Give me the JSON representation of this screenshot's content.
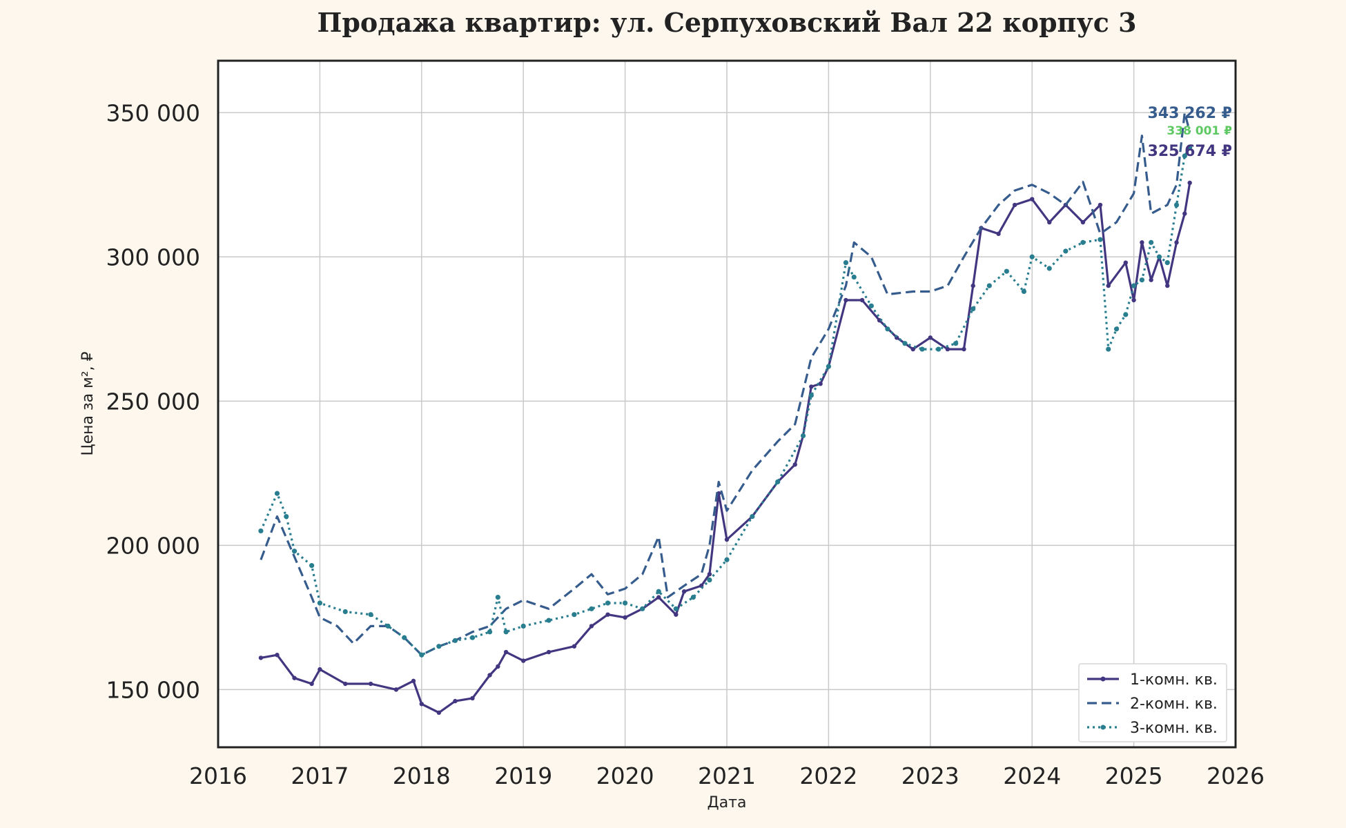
{
  "chart_data": {
    "type": "line",
    "title": "Продажа квартир: ул. Серпуховский Вал 22 корпус 3",
    "xlabel": "Дата",
    "ylabel": "Цена за м², ₽",
    "xlim": [
      2016.0,
      2026.0
    ],
    "ylim": [
      130000,
      368000
    ],
    "x_ticks": [
      "2016",
      "2017",
      "2018",
      "2019",
      "2020",
      "2021",
      "2022",
      "2023",
      "2024",
      "2025",
      "2026"
    ],
    "y_ticks": [
      {
        "value": 150000,
        "label": "150 000"
      },
      {
        "value": 200000,
        "label": "200 000"
      },
      {
        "value": 250000,
        "label": "250 000"
      },
      {
        "value": 300000,
        "label": "300 000"
      },
      {
        "value": 350000,
        "label": "350 000"
      }
    ],
    "grid": true,
    "legend_position": "bottom-right",
    "series": [
      {
        "name": "1-комн. кв.",
        "color": "#433680",
        "style": "solid",
        "end_label": "325 674 ₽",
        "points": [
          [
            2016.42,
            161000
          ],
          [
            2016.58,
            162000
          ],
          [
            2016.75,
            154000
          ],
          [
            2016.92,
            152000
          ],
          [
            2017.0,
            157000
          ],
          [
            2017.25,
            152000
          ],
          [
            2017.5,
            152000
          ],
          [
            2017.75,
            150000
          ],
          [
            2017.92,
            153000
          ],
          [
            2018.0,
            145000
          ],
          [
            2018.17,
            142000
          ],
          [
            2018.33,
            146000
          ],
          [
            2018.5,
            147000
          ],
          [
            2018.67,
            155000
          ],
          [
            2018.75,
            158000
          ],
          [
            2018.83,
            163000
          ],
          [
            2019.0,
            160000
          ],
          [
            2019.25,
            163000
          ],
          [
            2019.5,
            165000
          ],
          [
            2019.67,
            172000
          ],
          [
            2019.83,
            176000
          ],
          [
            2020.0,
            175000
          ],
          [
            2020.17,
            178000
          ],
          [
            2020.33,
            182000
          ],
          [
            2020.5,
            176000
          ],
          [
            2020.58,
            184000
          ],
          [
            2020.75,
            186000
          ],
          [
            2020.83,
            190000
          ],
          [
            2020.92,
            218000
          ],
          [
            2021.0,
            202000
          ],
          [
            2021.25,
            210000
          ],
          [
            2021.5,
            222000
          ],
          [
            2021.67,
            228000
          ],
          [
            2021.75,
            238000
          ],
          [
            2021.83,
            255000
          ],
          [
            2021.92,
            256000
          ],
          [
            2022.0,
            262000
          ],
          [
            2022.17,
            285000
          ],
          [
            2022.33,
            285000
          ],
          [
            2022.5,
            278000
          ],
          [
            2022.67,
            272000
          ],
          [
            2022.83,
            268000
          ],
          [
            2023.0,
            272000
          ],
          [
            2023.17,
            268000
          ],
          [
            2023.33,
            268000
          ],
          [
            2023.42,
            290000
          ],
          [
            2023.5,
            310000
          ],
          [
            2023.67,
            308000
          ],
          [
            2023.83,
            318000
          ],
          [
            2024.0,
            320000
          ],
          [
            2024.17,
            312000
          ],
          [
            2024.33,
            318000
          ],
          [
            2024.5,
            312000
          ],
          [
            2024.67,
            318000
          ],
          [
            2024.75,
            290000
          ],
          [
            2024.92,
            298000
          ],
          [
            2025.0,
            285000
          ],
          [
            2025.08,
            305000
          ],
          [
            2025.17,
            292000
          ],
          [
            2025.25,
            300000
          ],
          [
            2025.33,
            290000
          ],
          [
            2025.42,
            305000
          ],
          [
            2025.5,
            315000
          ],
          [
            2025.55,
            325674
          ]
        ]
      },
      {
        "name": "2-комн. кв.",
        "color": "#365c8d",
        "style": "dashed",
        "end_label": "343 262 ₽",
        "points": [
          [
            2016.42,
            195000
          ],
          [
            2016.58,
            210000
          ],
          [
            2016.75,
            196000
          ],
          [
            2016.92,
            182000
          ],
          [
            2017.0,
            175000
          ],
          [
            2017.17,
            172000
          ],
          [
            2017.33,
            166000
          ],
          [
            2017.5,
            172000
          ],
          [
            2017.67,
            172000
          ],
          [
            2017.83,
            168000
          ],
          [
            2018.0,
            162000
          ],
          [
            2018.17,
            165000
          ],
          [
            2018.33,
            167000
          ],
          [
            2018.5,
            170000
          ],
          [
            2018.67,
            172000
          ],
          [
            2018.83,
            178000
          ],
          [
            2019.0,
            181000
          ],
          [
            2019.25,
            178000
          ],
          [
            2019.5,
            185000
          ],
          [
            2019.67,
            190000
          ],
          [
            2019.83,
            183000
          ],
          [
            2020.0,
            185000
          ],
          [
            2020.17,
            190000
          ],
          [
            2020.33,
            203000
          ],
          [
            2020.42,
            182000
          ],
          [
            2020.58,
            186000
          ],
          [
            2020.75,
            190000
          ],
          [
            2020.83,
            200000
          ],
          [
            2020.92,
            222000
          ],
          [
            2021.0,
            212000
          ],
          [
            2021.25,
            226000
          ],
          [
            2021.5,
            236000
          ],
          [
            2021.67,
            242000
          ],
          [
            2021.83,
            265000
          ],
          [
            2022.0,
            275000
          ],
          [
            2022.17,
            290000
          ],
          [
            2022.25,
            305000
          ],
          [
            2022.42,
            300000
          ],
          [
            2022.58,
            287000
          ],
          [
            2022.83,
            288000
          ],
          [
            2023.0,
            288000
          ],
          [
            2023.17,
            290000
          ],
          [
            2023.33,
            300000
          ],
          [
            2023.5,
            310000
          ],
          [
            2023.67,
            318000
          ],
          [
            2023.83,
            323000
          ],
          [
            2024.0,
            325000
          ],
          [
            2024.17,
            322000
          ],
          [
            2024.33,
            318000
          ],
          [
            2024.5,
            326000
          ],
          [
            2024.67,
            308000
          ],
          [
            2024.83,
            312000
          ],
          [
            2025.0,
            322000
          ],
          [
            2025.08,
            342000
          ],
          [
            2025.17,
            315000
          ],
          [
            2025.33,
            318000
          ],
          [
            2025.42,
            325000
          ],
          [
            2025.5,
            350000
          ],
          [
            2025.55,
            343262
          ]
        ]
      },
      {
        "name": "3-комн. кв.",
        "color": "#287d8e",
        "style": "dotted",
        "end_label": "338 001 ₽",
        "label_color": "#5ec962",
        "points": [
          [
            2016.42,
            205000
          ],
          [
            2016.58,
            218000
          ],
          [
            2016.67,
            210000
          ],
          [
            2016.75,
            198000
          ],
          [
            2016.92,
            193000
          ],
          [
            2017.0,
            180000
          ],
          [
            2017.25,
            177000
          ],
          [
            2017.5,
            176000
          ],
          [
            2017.67,
            172000
          ],
          [
            2017.83,
            168000
          ],
          [
            2018.0,
            162000
          ],
          [
            2018.17,
            165000
          ],
          [
            2018.33,
            167000
          ],
          [
            2018.5,
            168000
          ],
          [
            2018.67,
            170000
          ],
          [
            2018.75,
            182000
          ],
          [
            2018.83,
            170000
          ],
          [
            2019.0,
            172000
          ],
          [
            2019.25,
            174000
          ],
          [
            2019.5,
            176000
          ],
          [
            2019.67,
            178000
          ],
          [
            2019.83,
            180000
          ],
          [
            2020.0,
            180000
          ],
          [
            2020.17,
            178000
          ],
          [
            2020.33,
            184000
          ],
          [
            2020.5,
            178000
          ],
          [
            2020.67,
            182000
          ],
          [
            2020.83,
            188000
          ],
          [
            2021.0,
            195000
          ],
          [
            2021.25,
            210000
          ],
          [
            2021.5,
            222000
          ],
          [
            2021.75,
            238000
          ],
          [
            2021.83,
            252000
          ],
          [
            2022.0,
            262000
          ],
          [
            2022.17,
            298000
          ],
          [
            2022.25,
            293000
          ],
          [
            2022.42,
            283000
          ],
          [
            2022.58,
            275000
          ],
          [
            2022.75,
            270000
          ],
          [
            2022.92,
            268000
          ],
          [
            2023.08,
            268000
          ],
          [
            2023.25,
            270000
          ],
          [
            2023.42,
            282000
          ],
          [
            2023.58,
            290000
          ],
          [
            2023.75,
            295000
          ],
          [
            2023.92,
            288000
          ],
          [
            2024.0,
            300000
          ],
          [
            2024.17,
            296000
          ],
          [
            2024.33,
            302000
          ],
          [
            2024.5,
            305000
          ],
          [
            2024.67,
            306000
          ],
          [
            2024.75,
            268000
          ],
          [
            2024.83,
            275000
          ],
          [
            2024.92,
            280000
          ],
          [
            2025.0,
            290000
          ],
          [
            2025.08,
            292000
          ],
          [
            2025.17,
            305000
          ],
          [
            2025.25,
            300000
          ],
          [
            2025.33,
            298000
          ],
          [
            2025.42,
            318000
          ],
          [
            2025.5,
            335000
          ],
          [
            2025.55,
            338001
          ]
        ]
      }
    ]
  }
}
